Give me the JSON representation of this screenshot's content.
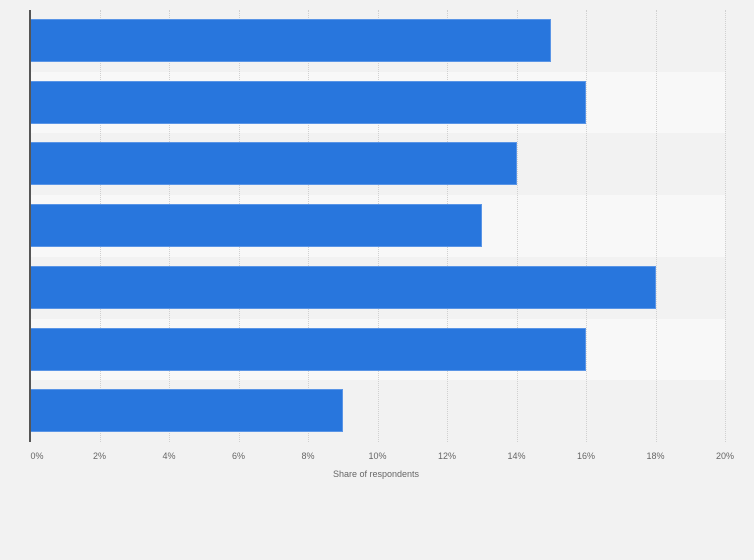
{
  "chart_data": {
    "type": "bar",
    "orientation": "horizontal",
    "title": "",
    "xlabel": "Share of respondents",
    "ylabel": "",
    "categories": [
      "",
      "",
      "",
      "",
      "",
      "",
      ""
    ],
    "values": [
      15,
      16,
      14,
      13,
      18,
      16,
      9
    ],
    "unit": "%",
    "xlim": [
      0,
      20
    ],
    "ticks": [
      "0%",
      "2%",
      "4%",
      "6%",
      "8%",
      "10%",
      "12%",
      "14%",
      "16%",
      "18%",
      "20%"
    ],
    "grid": true,
    "legend": null,
    "bar_color": "#2876dd"
  }
}
